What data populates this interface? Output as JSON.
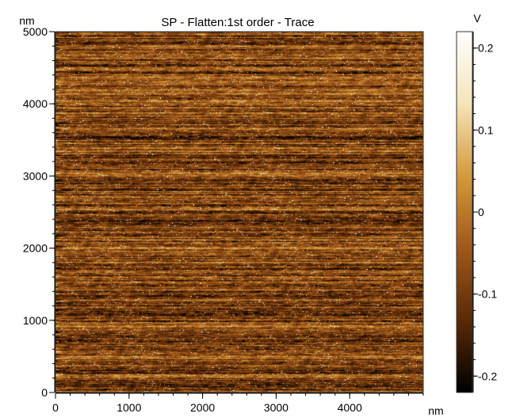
{
  "chart_data": {
    "type": "heatmap",
    "title": "SP  -  Flatten:1st order  -  Trace",
    "x_unit": "nm",
    "y_unit": "nm",
    "xlim": [
      0,
      5000
    ],
    "ylim": [
      0,
      5000
    ],
    "x_ticks": [
      0,
      1000,
      2000,
      3000,
      4000
    ],
    "y_ticks": [
      0,
      1000,
      2000,
      3000,
      4000,
      5000
    ],
    "colorbar": {
      "unit": "V",
      "range": [
        -0.22,
        0.22
      ],
      "ticks": [
        -0.2,
        -0.1,
        0,
        0.1,
        0.2
      ],
      "colors": [
        "#000000",
        "#5a2a08",
        "#a0581a",
        "#d49a3c",
        "#f4e4b8",
        "#ffffff"
      ]
    }
  }
}
